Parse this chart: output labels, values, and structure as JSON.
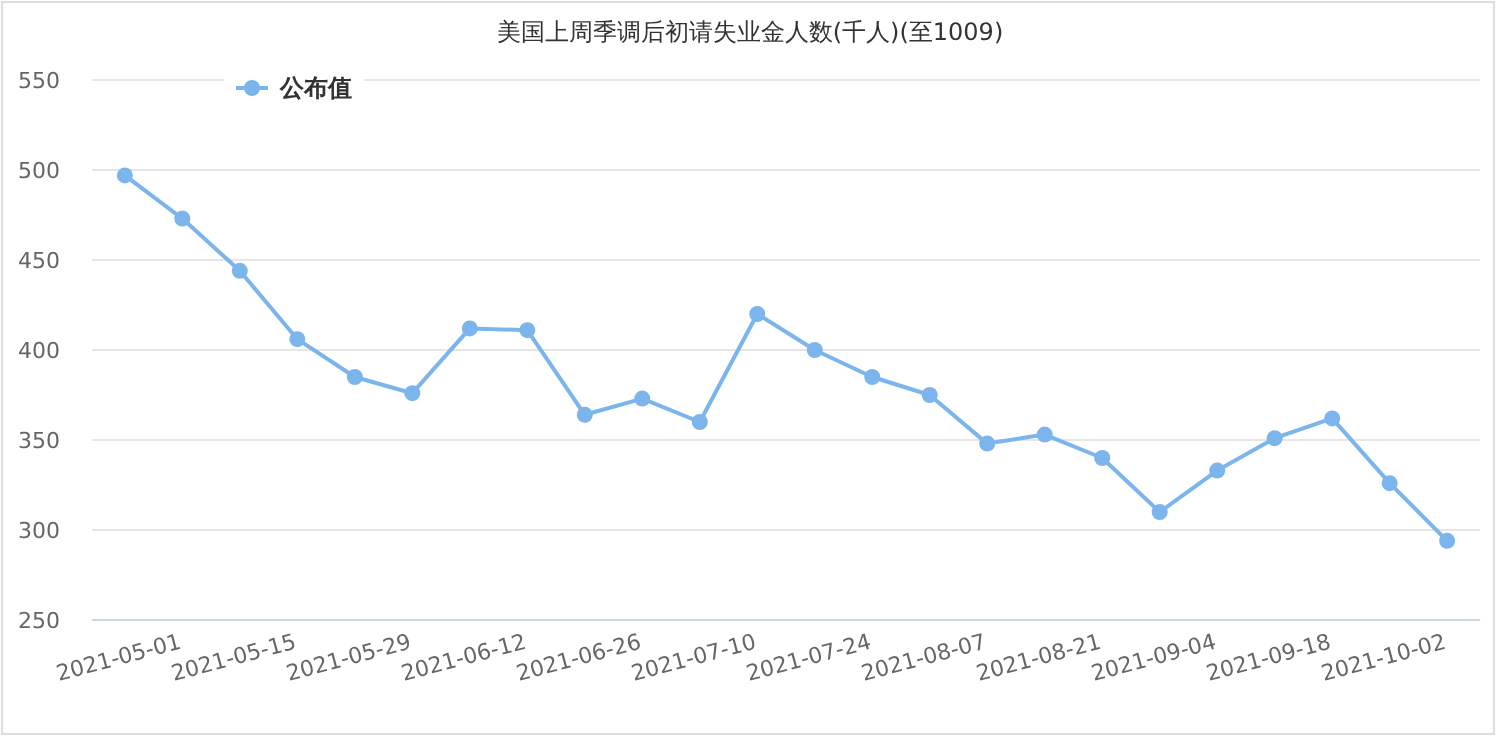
{
  "chart_data": {
    "type": "line",
    "title": "美国上周季调后初请失业金人数(千人)(至1009)",
    "x": [
      "2021-04-24",
      "2021-05-01",
      "2021-05-08",
      "2021-05-15",
      "2021-05-22",
      "2021-05-29",
      "2021-06-05",
      "2021-06-12",
      "2021-06-19",
      "2021-06-26",
      "2021-07-03",
      "2021-07-10",
      "2021-07-17",
      "2021-07-24",
      "2021-07-31",
      "2021-08-07",
      "2021-08-14",
      "2021-08-21",
      "2021-08-28",
      "2021-09-04",
      "2021-09-11",
      "2021-09-18",
      "2021-09-25",
      "2021-10-02"
    ],
    "series": [
      {
        "name": "公布值",
        "color": "#7cb5ec",
        "values": [
          497,
          473,
          444,
          406,
          385,
          376,
          412,
          411,
          364,
          373,
          360,
          420,
          400,
          385,
          375,
          348,
          353,
          340,
          310,
          333,
          351,
          362,
          326,
          294
        ]
      }
    ],
    "xlim": [
      "2021-04-20",
      "2021-10-06"
    ],
    "xticks": [
      {
        "value": "2021-05-01",
        "label": "2021-05-01"
      },
      {
        "value": "2021-05-15",
        "label": "2021-05-15"
      },
      {
        "value": "2021-05-29",
        "label": "2021-05-29"
      },
      {
        "value": "2021-06-12",
        "label": "2021-06-12"
      },
      {
        "value": "2021-06-26",
        "label": "2021-06-26"
      },
      {
        "value": "2021-07-10",
        "label": "2021-07-10"
      },
      {
        "value": "2021-07-24",
        "label": "2021-07-24"
      },
      {
        "value": "2021-08-07",
        "label": "2021-08-07"
      },
      {
        "value": "2021-08-21",
        "label": "2021-08-21"
      },
      {
        "value": "2021-09-04",
        "label": "2021-09-04"
      },
      {
        "value": "2021-09-18",
        "label": "2021-09-18"
      },
      {
        "value": "2021-10-02",
        "label": "2021-10-02"
      }
    ],
    "ylim": [
      250,
      550
    ],
    "yticks": [
      250,
      300,
      350,
      400,
      450,
      500,
      550
    ],
    "grid": "y",
    "legend": "top left",
    "marker": "circle",
    "line_style": "solid"
  }
}
